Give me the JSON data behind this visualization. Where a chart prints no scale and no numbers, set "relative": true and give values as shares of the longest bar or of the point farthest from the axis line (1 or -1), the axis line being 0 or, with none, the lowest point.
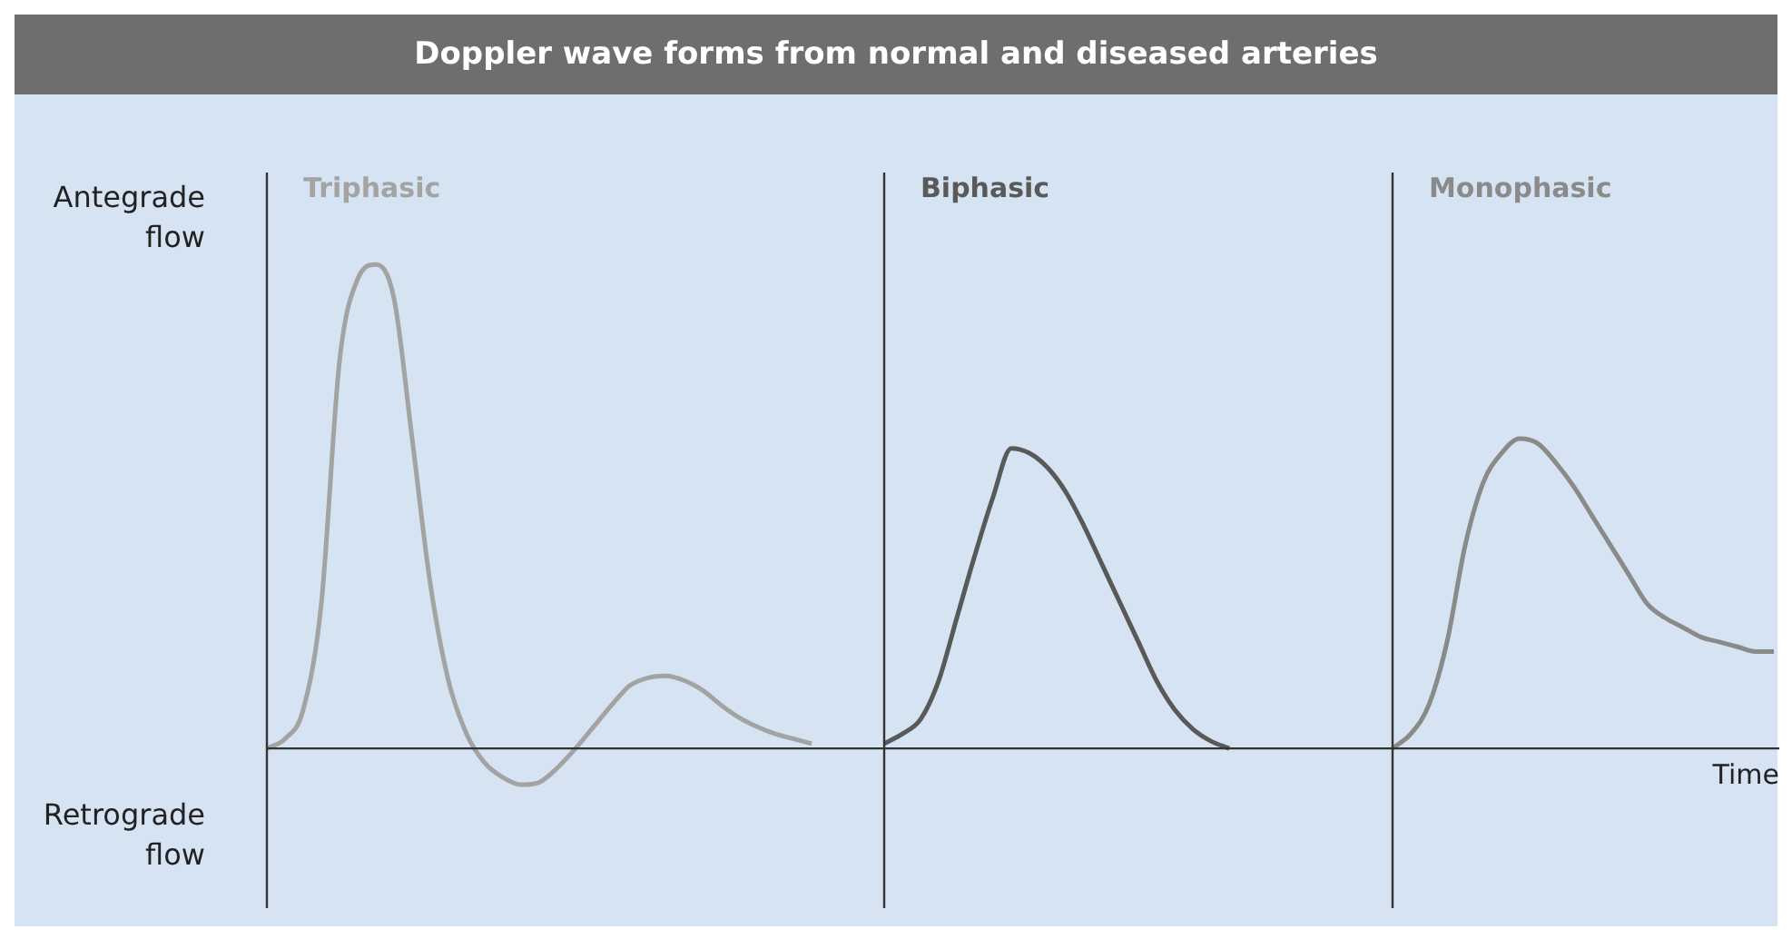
{
  "chart_data": {
    "type": "line",
    "title": "Doppler wave forms from normal and diseased arteries",
    "xlabel": "Time",
    "annotations": [
      "Antegrade flow",
      "Retrograde flow"
    ],
    "relative": true,
    "categories": [
      null,
      null,
      null,
      null,
      null,
      null,
      null,
      null,
      null,
      null,
      null,
      null,
      null,
      null,
      null,
      null,
      null,
      null,
      null,
      null,
      null,
      null,
      null,
      null,
      null,
      null,
      null,
      null,
      null,
      null,
      null,
      null,
      null,
      null,
      null,
      null,
      null,
      null,
      null,
      null,
      null,
      null,
      null,
      null,
      null,
      null,
      null,
      null,
      null,
      null,
      null,
      null,
      null,
      null,
      null,
      null,
      null,
      null,
      null,
      null,
      null,
      null,
      null,
      null,
      null,
      null,
      null,
      null,
      null,
      null,
      null,
      null,
      null,
      null,
      null,
      null,
      null,
      null,
      null,
      null,
      null,
      null,
      null,
      null
    ],
    "series": [
      {
        "name": "Triphasic",
        "color": "#a3a3a3",
        "values": [
          0,
          0.02,
          0.08,
          0.3,
          0.8,
          0.97,
          1,
          0.93,
          0.64,
          0.34,
          0.14,
          0.03,
          -0.03,
          -0.06,
          -0.075,
          -0.07,
          -0.04,
          0,
          0.045,
          0.09,
          0.13,
          0.146,
          0.15,
          0.14,
          0.12,
          0.09,
          0.064,
          0.045,
          0.03,
          0.02,
          0.01,
          null,
          null,
          null,
          null,
          null,
          null,
          null,
          null,
          null,
          null,
          null,
          null,
          null,
          null,
          null,
          null,
          null,
          null,
          null,
          null,
          null,
          null,
          null,
          null,
          null,
          null,
          null,
          null,
          null,
          null,
          null,
          null,
          null,
          null,
          null,
          null,
          null,
          null,
          null,
          null,
          null,
          null,
          null,
          null,
          null,
          null,
          null,
          null,
          null,
          null,
          null,
          null,
          null
        ]
      },
      {
        "name": "Biphasic",
        "color": "#595959",
        "values": [
          null,
          null,
          null,
          null,
          null,
          null,
          null,
          null,
          null,
          null,
          null,
          null,
          null,
          null,
          null,
          null,
          null,
          null,
          null,
          null,
          null,
          null,
          null,
          null,
          null,
          null,
          null,
          null,
          null,
          null,
          null,
          null,
          null,
          null,
          0.01,
          0.03,
          0.06,
          0.14,
          0.27,
          0.4,
          0.52,
          0.62,
          0.61,
          0.58,
          0.53,
          0.46,
          0.38,
          0.3,
          0.22,
          0.14,
          0.08,
          0.04,
          0.015,
          0,
          null,
          null,
          null,
          null,
          null,
          null,
          null,
          null,
          null,
          null,
          null,
          null,
          null,
          null,
          null,
          null,
          null,
          null,
          null,
          null,
          null,
          null,
          null,
          null,
          null,
          null,
          null,
          null,
          null,
          null
        ]
      },
      {
        "name": "Monophasic",
        "color": "#8a8a8a",
        "values": [
          null,
          null,
          null,
          null,
          null,
          null,
          null,
          null,
          null,
          null,
          null,
          null,
          null,
          null,
          null,
          null,
          null,
          null,
          null,
          null,
          null,
          null,
          null,
          null,
          null,
          null,
          null,
          null,
          null,
          null,
          null,
          null,
          null,
          null,
          null,
          null,
          null,
          null,
          null,
          null,
          null,
          null,
          null,
          null,
          null,
          null,
          null,
          null,
          null,
          null,
          null,
          null,
          null,
          null,
          null,
          null,
          null,
          null,
          null,
          null,
          null,
          null,
          0,
          0.03,
          0.09,
          0.22,
          0.42,
          0.55,
          0.61,
          0.64,
          0.63,
          0.59,
          0.54,
          0.48,
          0.42,
          0.36,
          0.3,
          0.27,
          0.25,
          0.23,
          0.22,
          0.21,
          0.2,
          0.2
        ]
      }
    ]
  }
}
